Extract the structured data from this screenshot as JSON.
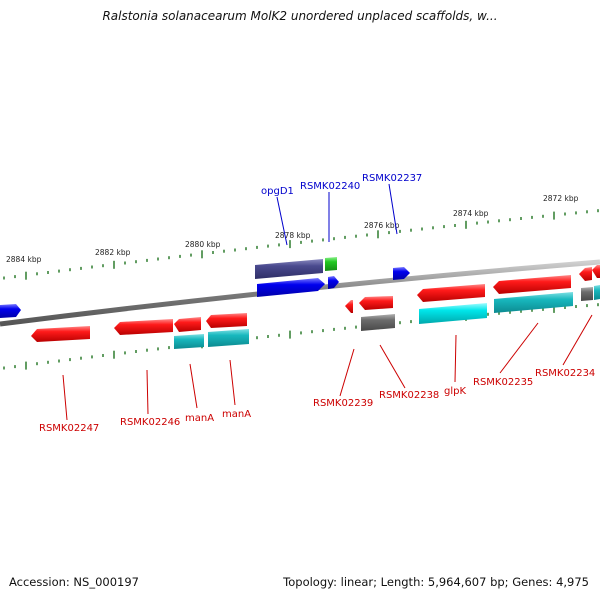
{
  "title": "Ralstonia solanacearum MolK2 unordered unplaced scaffolds, w...",
  "footer": {
    "accession": "Accession: NS_000197",
    "summary": "Topology: linear; Length: 5,964,607 bp; Genes: 4,975"
  },
  "colors": {
    "backbone": "#888888",
    "tick": "#2f7d2f",
    "forward_gene": "#0000ee",
    "forward_label": "#0000cc",
    "reverse_gene": "#ee0000",
    "reverse_label": "#cc0000",
    "cyan": "#00c8c8",
    "teal": "#1aaeb4",
    "slate": "#4a4a8e",
    "gray": "#6c6c6c",
    "green": "#22bb22"
  },
  "upper_scale_labels": [
    "2884 kbp",
    "2882 kbp",
    "2880 kbp",
    "2878 kbp",
    "2876 kbp",
    "2874 kbp",
    "2872 kbp"
  ],
  "forward_labels": [
    "opgD1",
    "RSMK02240",
    "RSMK02237"
  ],
  "reverse_labels": [
    "RSMK02247",
    "RSMK02246",
    "manA",
    "manA",
    "RSMK02239",
    "RSMK02238",
    "glpK",
    "RSMK02235",
    "RSMK02234"
  ]
}
